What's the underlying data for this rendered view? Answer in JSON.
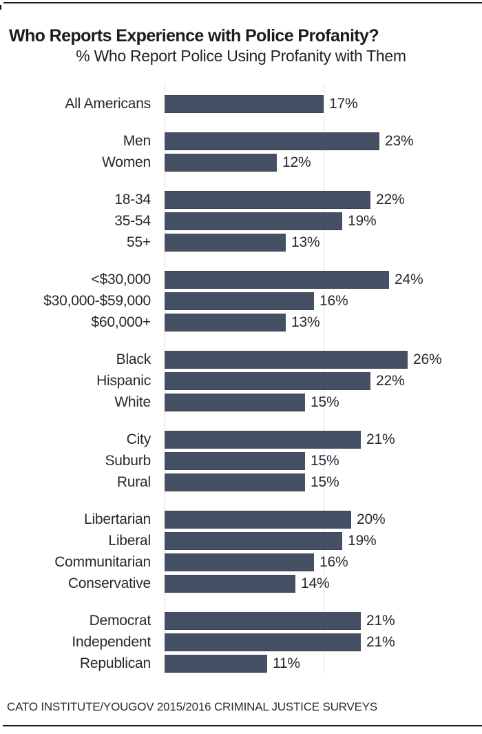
{
  "page": {
    "title": "Who Reports Experience with Police Profanity?",
    "subtitle": "% Who Report Police Using Profanity with Them",
    "source": "CATO INSTITUTE/YOUGOV 2015/2016 CRIMINAL JUSTICE SURVEYS"
  },
  "chart_data": {
    "type": "bar",
    "orientation": "horizontal",
    "title": "Who Reports Experience with Police Profanity?",
    "subtitle": "% Who Report Police Using Profanity with Them",
    "source": "CATO INSTITUTE/YOUGOV 2015/2016 CRIMINAL JUSTICE SURVEYS",
    "value_unit": "%",
    "xlim": [
      0,
      34
    ],
    "gridlines": [
      0,
      17
    ],
    "legend": "none",
    "colors": {
      "bar": "#465064",
      "gridline": "#d9dde9",
      "text": "#26282e",
      "rule": "#17181a"
    },
    "groups": [
      {
        "items": [
          {
            "label": "All Americans",
            "value": 17,
            "display": "17%"
          }
        ]
      },
      {
        "items": [
          {
            "label": "Men",
            "value": 23,
            "display": "23%"
          },
          {
            "label": "Women",
            "value": 12,
            "display": "12%"
          }
        ]
      },
      {
        "items": [
          {
            "label": "18-34",
            "value": 22,
            "display": "22%"
          },
          {
            "label": "35-54",
            "value": 19,
            "display": "19%"
          },
          {
            "label": "55+",
            "value": 13,
            "display": "13%"
          }
        ]
      },
      {
        "items": [
          {
            "label": "<$30,000",
            "value": 24,
            "display": "24%"
          },
          {
            "label": "$30,000-$59,000",
            "value": 16,
            "display": "16%"
          },
          {
            "label": "$60,000+",
            "value": 13,
            "display": "13%"
          }
        ]
      },
      {
        "items": [
          {
            "label": "Black",
            "value": 26,
            "display": "26%"
          },
          {
            "label": "Hispanic",
            "value": 22,
            "display": "22%"
          },
          {
            "label": "White",
            "value": 15,
            "display": "15%"
          }
        ]
      },
      {
        "items": [
          {
            "label": "City",
            "value": 21,
            "display": "21%"
          },
          {
            "label": "Suburb",
            "value": 15,
            "display": "15%"
          },
          {
            "label": "Rural",
            "value": 15,
            "display": "15%"
          }
        ]
      },
      {
        "items": [
          {
            "label": "Libertarian",
            "value": 20,
            "display": "20%"
          },
          {
            "label": "Liberal",
            "value": 19,
            "display": "19%"
          },
          {
            "label": "Communitarian",
            "value": 16,
            "display": "16%"
          },
          {
            "label": "Conservative",
            "value": 14,
            "display": "14%"
          }
        ]
      },
      {
        "items": [
          {
            "label": "Democrat",
            "value": 21,
            "display": "21%"
          },
          {
            "label": "Independent",
            "value": 21,
            "display": "21%"
          },
          {
            "label": "Republican",
            "value": 11,
            "display": "11%"
          }
        ]
      }
    ]
  }
}
